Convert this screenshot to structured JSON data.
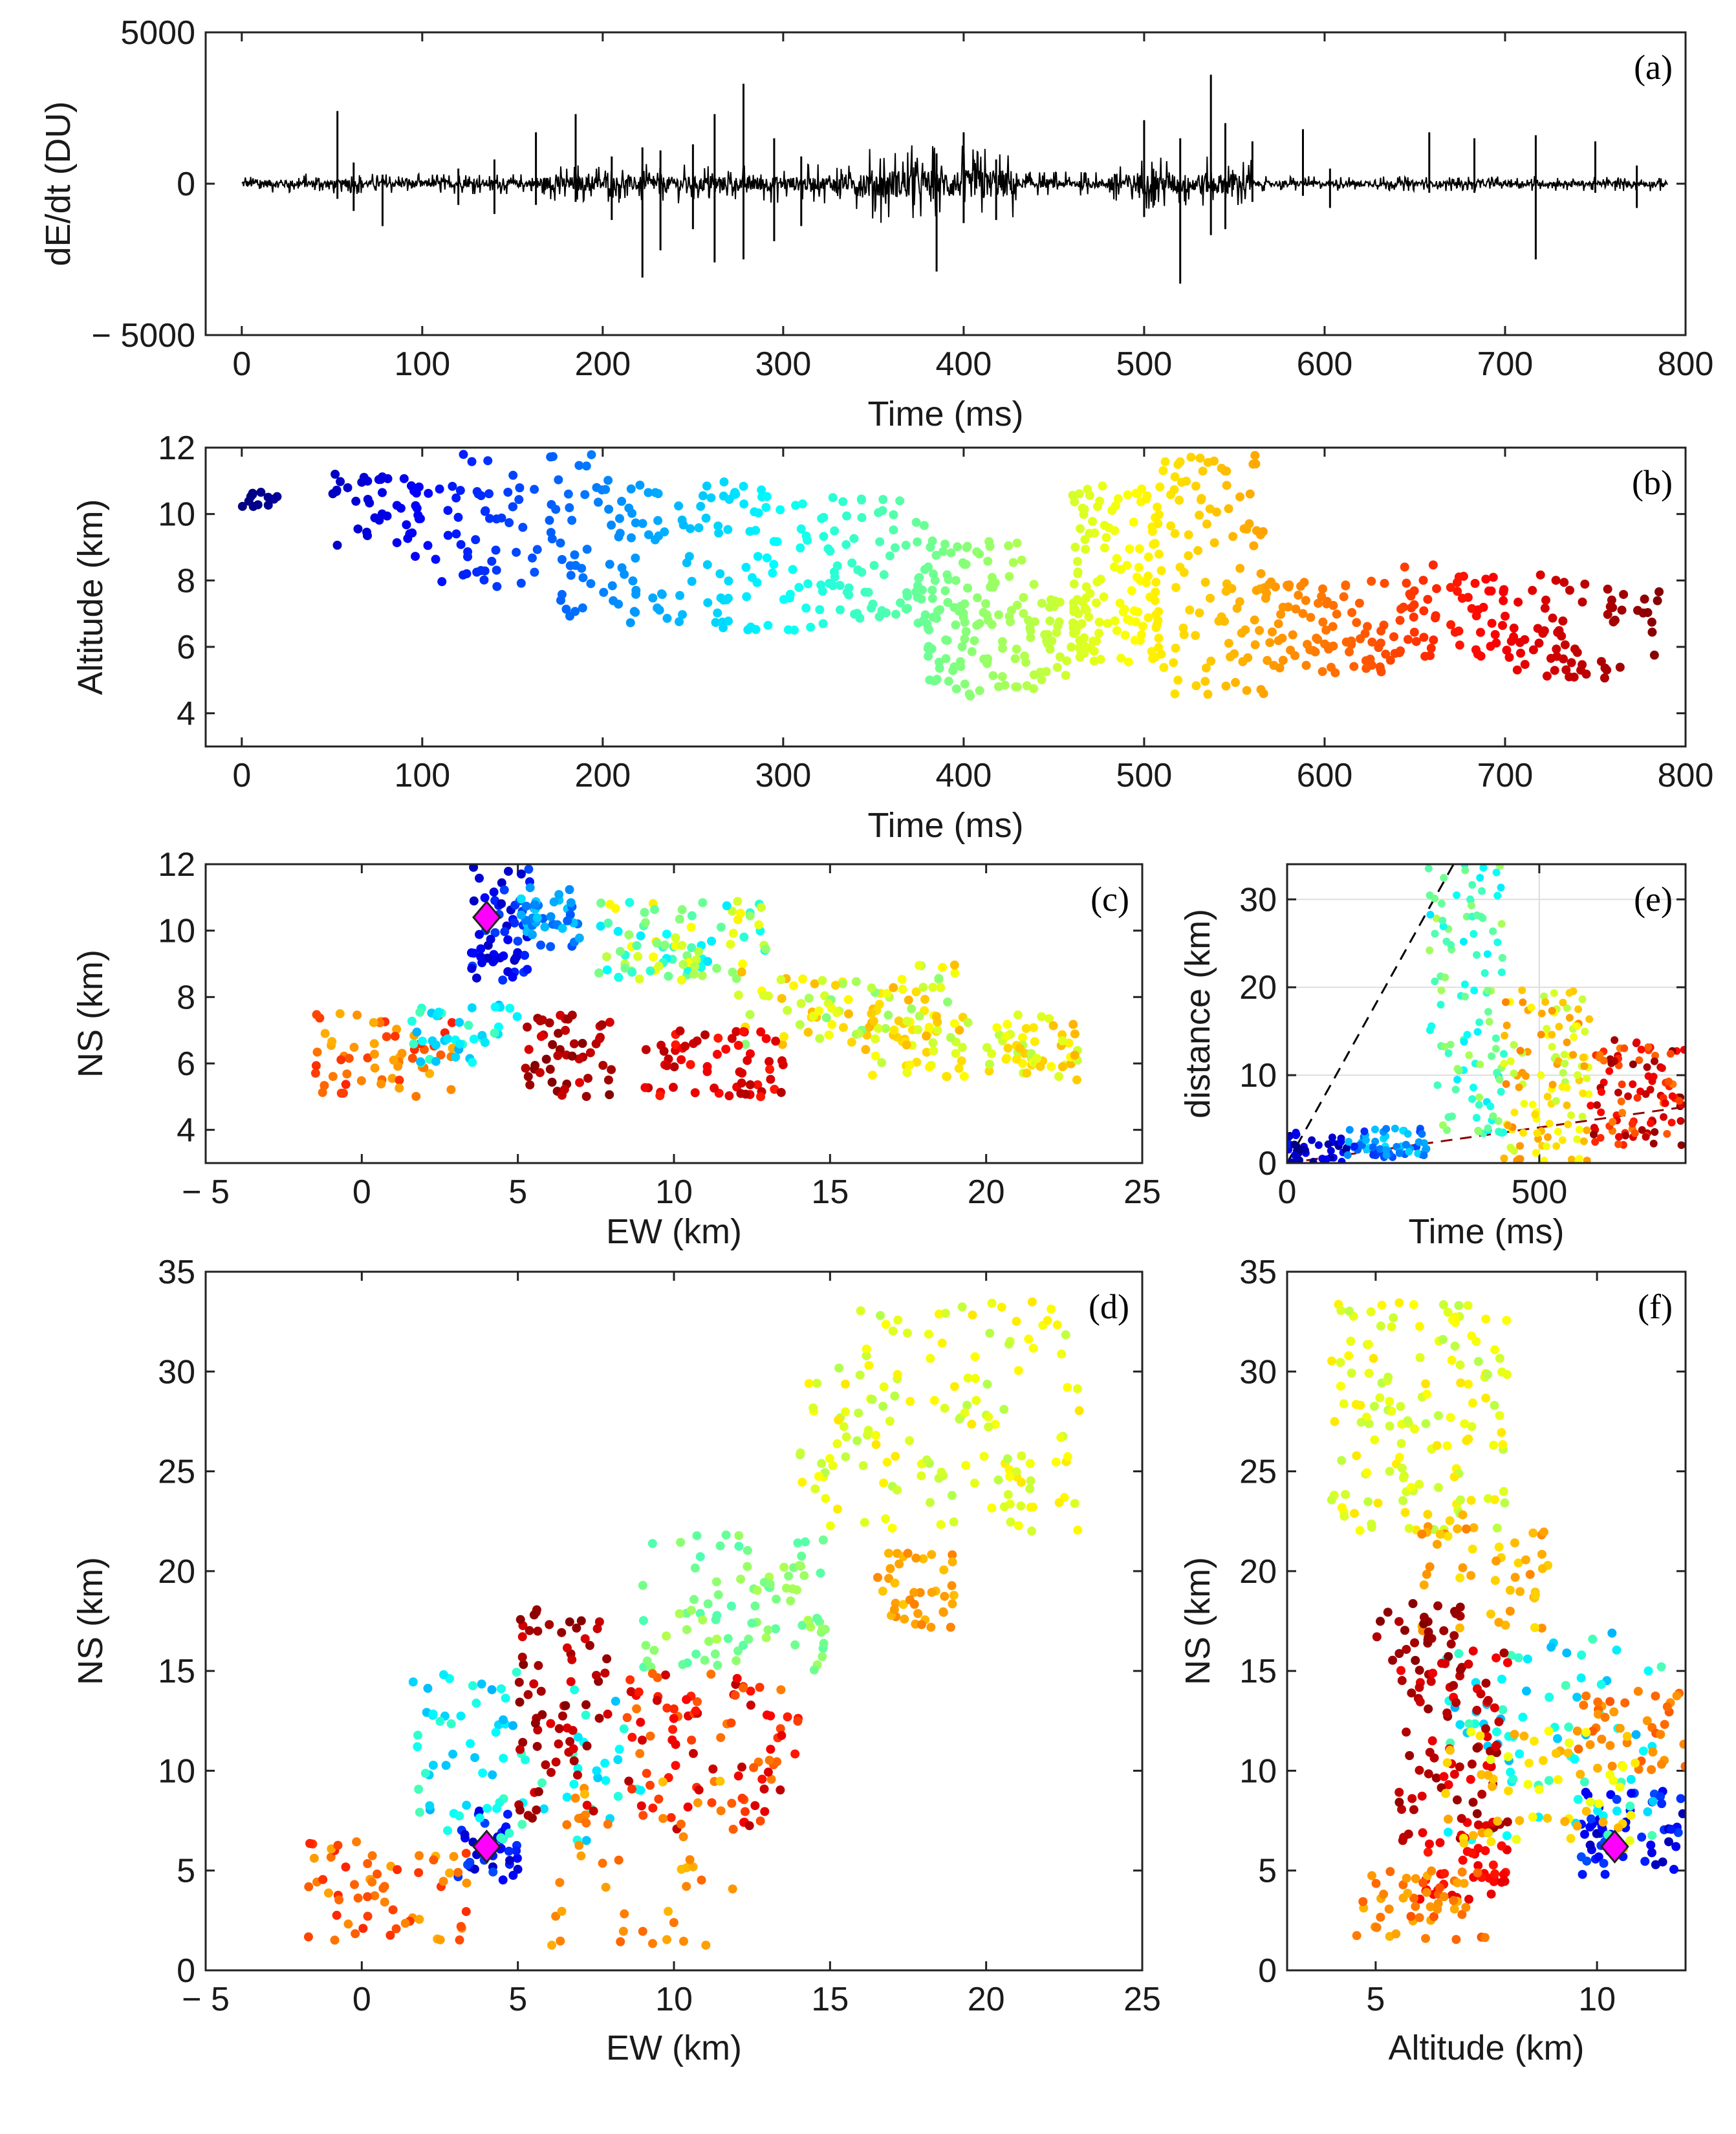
{
  "figure": "Lightning flash overview: dE/dt waveform, source altitude vs time, plan and side views",
  "chart_data": [
    {
      "id": "a",
      "type": "line",
      "panel_label": "(a)",
      "title": "",
      "xlabel": "Time (ms)",
      "ylabel": "dE/dt (DU)",
      "xlim": [
        -20,
        800
      ],
      "ylim": [
        -5000,
        5000
      ],
      "xticks": [
        "0",
        "100",
        "200",
        "300",
        "400",
        "500",
        "600",
        "700",
        "800"
      ],
      "yticks": [
        "− 5000",
        "0",
        "5000"
      ],
      "spikes": [
        {
          "t": 53,
          "up": 2400,
          "down": -500
        },
        {
          "t": 62,
          "up": 700,
          "down": -900
        },
        {
          "t": 78,
          "up": 300,
          "down": -1400
        },
        {
          "t": 120,
          "up": 500,
          "down": -700
        },
        {
          "t": 140,
          "up": 800,
          "down": -1000
        },
        {
          "t": 163,
          "up": 1700,
          "down": -700
        },
        {
          "t": 185,
          "up": 2300,
          "down": -600
        },
        {
          "t": 205,
          "up": 900,
          "down": -1200
        },
        {
          "t": 222,
          "up": 1200,
          "down": -3100
        },
        {
          "t": 232,
          "up": 1100,
          "down": -2200
        },
        {
          "t": 250,
          "up": 1300,
          "down": -1500
        },
        {
          "t": 262,
          "up": 2300,
          "down": -2600
        },
        {
          "t": 278,
          "up": 3300,
          "down": -2500
        },
        {
          "t": 295,
          "up": 1500,
          "down": -1900
        },
        {
          "t": 310,
          "up": 900,
          "down": -1400
        },
        {
          "t": 385,
          "up": 1000,
          "down": -2900
        },
        {
          "t": 400,
          "up": 1700,
          "down": -1300
        },
        {
          "t": 418,
          "up": 800,
          "down": -1200
        },
        {
          "t": 500,
          "up": 2100,
          "down": -1100
        },
        {
          "t": 520,
          "up": 1500,
          "down": -3300
        },
        {
          "t": 537,
          "up": 3600,
          "down": -1700
        },
        {
          "t": 545,
          "up": 2000,
          "down": -1500
        },
        {
          "t": 560,
          "up": 1400,
          "down": -600
        },
        {
          "t": 588,
          "up": 1800,
          "down": -400
        },
        {
          "t": 603,
          "up": 500,
          "down": -800
        },
        {
          "t": 658,
          "up": 1700,
          "down": -300
        },
        {
          "t": 683,
          "up": 1500,
          "down": -300
        },
        {
          "t": 717,
          "up": 1600,
          "down": -2500
        },
        {
          "t": 750,
          "up": 1400,
          "down": -300
        },
        {
          "t": 773,
          "up": 600,
          "down": -800
        }
      ],
      "noise_bursts": [
        {
          "start": 0,
          "end": 160,
          "amp": 350
        },
        {
          "start": 160,
          "end": 340,
          "amp": 650
        },
        {
          "start": 340,
          "end": 430,
          "amp": 1300
        },
        {
          "start": 430,
          "end": 480,
          "amp": 400
        },
        {
          "start": 480,
          "end": 560,
          "amp": 900
        },
        {
          "start": 560,
          "end": 800,
          "amp": 250
        }
      ]
    },
    {
      "id": "b",
      "type": "scatter",
      "panel_label": "(b)",
      "title": "",
      "xlabel": "Time (ms)",
      "ylabel": "Altitude (km)",
      "xlim": [
        -20,
        800
      ],
      "ylim": [
        3,
        12
      ],
      "xticks": [
        "0",
        "100",
        "200",
        "300",
        "400",
        "500",
        "600",
        "700",
        "800"
      ],
      "yticks": [
        "4",
        "6",
        "8",
        "10",
        "12"
      ],
      "color_by": "time (ms), jet colormap 0-790",
      "groups": [
        {
          "x": [
            0,
            20
          ],
          "y": [
            10.2,
            10.9
          ],
          "n": 12
        },
        {
          "x": [
            50,
            100
          ],
          "y": [
            9.0,
            11.2
          ],
          "n": 40
        },
        {
          "x": [
            95,
            165
          ],
          "y": [
            7.8,
            11.8
          ],
          "n": 55
        },
        {
          "x": [
            170,
            215
          ],
          "y": [
            6.9,
            11.8
          ],
          "n": 50
        },
        {
          "x": [
            215,
            300
          ],
          "y": [
            6.4,
            11.0
          ],
          "n": 90
        },
        {
          "x": [
            300,
            380
          ],
          "y": [
            6.5,
            10.5
          ],
          "n": 90
        },
        {
          "x": [
            380,
            440
          ],
          "y": [
            4.5,
            9.2
          ],
          "n": 120
        },
        {
          "x": [
            440,
            470
          ],
          "y": [
            5.0,
            7.5
          ],
          "n": 40
        },
        {
          "x": [
            460,
            510
          ],
          "y": [
            5.5,
            10.9
          ],
          "n": 120
        },
        {
          "x": [
            510,
            570
          ],
          "y": [
            4.5,
            11.8
          ],
          "n": 90
        },
        {
          "x": [
            560,
            640
          ],
          "y": [
            5.2,
            8.0
          ],
          "n": 90
        },
        {
          "x": [
            640,
            700
          ],
          "y": [
            5.5,
            8.5
          ],
          "n": 60
        },
        {
          "x": [
            700,
            790
          ],
          "y": [
            5.0,
            8.2
          ],
          "n": 70
        }
      ]
    },
    {
      "id": "c",
      "type": "scatter",
      "panel_label": "(c)",
      "title": "",
      "xlabel": "EW (km)",
      "ylabel": "NS (km)",
      "xlim": [
        -5,
        25
      ],
      "ylim": [
        3,
        12
      ],
      "xticks": [
        "− 5",
        "0",
        "5",
        "10",
        "15",
        "20",
        "25"
      ],
      "yticks": [
        "4",
        "6",
        "8",
        "10",
        "12"
      ],
      "marker": {
        "x": 4.0,
        "y": 10.4,
        "shape": "diamond",
        "color": "#ff00ff"
      },
      "groups": [
        {
          "x": [
            3.5,
            5.5
          ],
          "y": [
            8.5,
            12.0
          ],
          "n": 60,
          "c": [
            0.05,
            0.2
          ]
        },
        {
          "x": [
            5.0,
            7.0
          ],
          "y": [
            9.5,
            11.3
          ],
          "n": 40,
          "c": [
            0.2,
            0.35
          ]
        },
        {
          "x": [
            7.5,
            13.0
          ],
          "y": [
            8.5,
            10.9
          ],
          "n": 90,
          "c": [
            0.35,
            0.65
          ]
        },
        {
          "x": [
            12.0,
            19.0
          ],
          "y": [
            6.5,
            9.0
          ],
          "n": 90,
          "c": [
            0.5,
            0.7
          ]
        },
        {
          "x": [
            16.0,
            23.0
          ],
          "y": [
            5.5,
            7.5
          ],
          "n": 100,
          "c": [
            0.55,
            0.7
          ]
        },
        {
          "x": [
            -1.5,
            3.0
          ],
          "y": [
            5.0,
            7.5
          ],
          "n": 60,
          "c": [
            0.7,
            0.85
          ]
        },
        {
          "x": [
            5.0,
            8.0
          ],
          "y": [
            5.0,
            7.5
          ],
          "n": 50,
          "c": [
            0.9,
            1.0
          ]
        },
        {
          "x": [
            9.0,
            13.5
          ],
          "y": [
            5.0,
            7.0
          ],
          "n": 60,
          "c": [
            0.85,
            0.95
          ]
        },
        {
          "x": [
            1.5,
            5.0
          ],
          "y": [
            6.0,
            7.8
          ],
          "n": 40,
          "c": [
            0.3,
            0.45
          ]
        }
      ]
    },
    {
      "id": "e",
      "type": "scatter",
      "panel_label": "(e)",
      "title": "",
      "xlabel": "Time (ms)",
      "ylabel": "distance (km)",
      "xlim": [
        0,
        790
      ],
      "ylim": [
        0,
        34
      ],
      "xticks": [
        "0",
        "500"
      ],
      "yticks": [
        "0",
        "10",
        "20",
        "30"
      ],
      "grid": true,
      "reference_lines": [
        {
          "name": "fast",
          "x": [
            0,
            330
          ],
          "y": [
            0,
            34
          ],
          "style": "dashed",
          "color": "#000000"
        },
        {
          "name": "slow",
          "x": [
            0,
            790
          ],
          "y": [
            0,
            6.4
          ],
          "style": "dashed",
          "color": "#8b0000"
        }
      ],
      "groups": [
        {
          "x": [
            0,
            120
          ],
          "y": [
            0,
            3.5
          ],
          "n": 40,
          "c": [
            0.0,
            0.15
          ]
        },
        {
          "x": [
            120,
            280
          ],
          "y": [
            0.5,
            4
          ],
          "n": 60,
          "c": [
            0.15,
            0.35
          ]
        },
        {
          "x": [
            280,
            430
          ],
          "y": [
            3,
            34
          ],
          "n": 110,
          "c": [
            0.35,
            0.55
          ]
        },
        {
          "x": [
            430,
            600
          ],
          "y": [
            0,
            20
          ],
          "n": 120,
          "c": [
            0.55,
            0.75
          ]
        },
        {
          "x": [
            600,
            790
          ],
          "y": [
            2,
            14
          ],
          "n": 100,
          "c": [
            0.75,
            1.0
          ]
        }
      ]
    },
    {
      "id": "d",
      "type": "scatter",
      "panel_label": "(d)",
      "title": "",
      "xlabel": "EW (km)",
      "ylabel": "NS (km)",
      "xlim": [
        -5,
        25
      ],
      "ylim": [
        0,
        35
      ],
      "xticks": [
        "− 5",
        "0",
        "5",
        "10",
        "15",
        "20",
        "25"
      ],
      "yticks": [
        "0",
        "5",
        "10",
        "15",
        "20",
        "25",
        "30",
        "35"
      ],
      "marker": {
        "x": 4.0,
        "y": 6.2,
        "shape": "diamond",
        "color": "#ff00ff"
      },
      "groups": [
        {
          "x": [
            3.0,
            5.0
          ],
          "y": [
            4.5,
            8.0
          ],
          "n": 40,
          "c": [
            0.05,
            0.2
          ]
        },
        {
          "x": [
            1.5,
            9.0
          ],
          "y": [
            6.5,
            15.0
          ],
          "n": 80,
          "c": [
            0.3,
            0.45
          ]
        },
        {
          "x": [
            9.0,
            15.0
          ],
          "y": [
            15.0,
            22.0
          ],
          "n": 90,
          "c": [
            0.45,
            0.55
          ]
        },
        {
          "x": [
            14.0,
            23.0
          ],
          "y": [
            22.0,
            33.5
          ],
          "n": 150,
          "c": [
            0.55,
            0.65
          ]
        },
        {
          "x": [
            16.5,
            19.0
          ],
          "y": [
            17.0,
            21.0
          ],
          "n": 40,
          "c": [
            0.68,
            0.75
          ]
        },
        {
          "x": [
            -2.0,
            3.5
          ],
          "y": [
            1.5,
            6.5
          ],
          "n": 60,
          "c": [
            0.7,
            0.85
          ]
        },
        {
          "x": [
            5.0,
            8.0
          ],
          "y": [
            7.5,
            18.5
          ],
          "n": 70,
          "c": [
            0.9,
            1.0
          ]
        },
        {
          "x": [
            8.5,
            14.0
          ],
          "y": [
            7.0,
            15.0
          ],
          "n": 100,
          "c": [
            0.75,
            0.95
          ]
        },
        {
          "x": [
            6.0,
            12.0
          ],
          "y": [
            1.0,
            10.0
          ],
          "n": 40,
          "c": [
            0.68,
            0.78
          ]
        }
      ]
    },
    {
      "id": "f",
      "type": "scatter",
      "panel_label": "(f)",
      "title": "",
      "xlabel": "Altitude (km)",
      "ylabel": "NS (km)",
      "xlim": [
        3,
        12
      ],
      "ylim": [
        0,
        35
      ],
      "xticks": [
        "5",
        "10"
      ],
      "yticks": [
        "0",
        "5",
        "10",
        "15",
        "20",
        "25",
        "30",
        "35"
      ],
      "marker": {
        "x": 10.4,
        "y": 6.2,
        "shape": "diamond",
        "color": "#ff00ff"
      },
      "groups": [
        {
          "x": [
            9.5,
            12.0
          ],
          "y": [
            4.8,
            9.0
          ],
          "n": 60,
          "c": [
            0.05,
            0.2
          ]
        },
        {
          "x": [
            6.5,
            11.5
          ],
          "y": [
            6.5,
            17.0
          ],
          "n": 80,
          "c": [
            0.3,
            0.45
          ]
        },
        {
          "x": [
            4.0,
            8.0
          ],
          "y": [
            22.0,
            33.5
          ],
          "n": 140,
          "c": [
            0.55,
            0.65
          ]
        },
        {
          "x": [
            6.0,
            9.0
          ],
          "y": [
            17.0,
            23.0
          ],
          "n": 50,
          "c": [
            0.65,
            0.75
          ]
        },
        {
          "x": [
            5.0,
            7.0
          ],
          "y": [
            15.0,
            18.5
          ],
          "n": 30,
          "c": [
            0.95,
            1.0
          ]
        },
        {
          "x": [
            5.5,
            8.0
          ],
          "y": [
            6.5,
            16.0
          ],
          "n": 90,
          "c": [
            0.88,
            0.98
          ]
        },
        {
          "x": [
            6.0,
            8.0
          ],
          "y": [
            3.5,
            6.5
          ],
          "n": 40,
          "c": [
            0.85,
            0.9
          ]
        },
        {
          "x": [
            4.5,
            7.5
          ],
          "y": [
            1.5,
            5.0
          ],
          "n": 50,
          "c": [
            0.7,
            0.8
          ]
        },
        {
          "x": [
            9.5,
            12.0
          ],
          "y": [
            10.0,
            14.0
          ],
          "n": 40,
          "c": [
            0.72,
            0.8
          ]
        },
        {
          "x": [
            6.5,
            11.0
          ],
          "y": [
            6.0,
            12.0
          ],
          "n": 60,
          "c": [
            0.6,
            0.72
          ]
        }
      ]
    }
  ]
}
